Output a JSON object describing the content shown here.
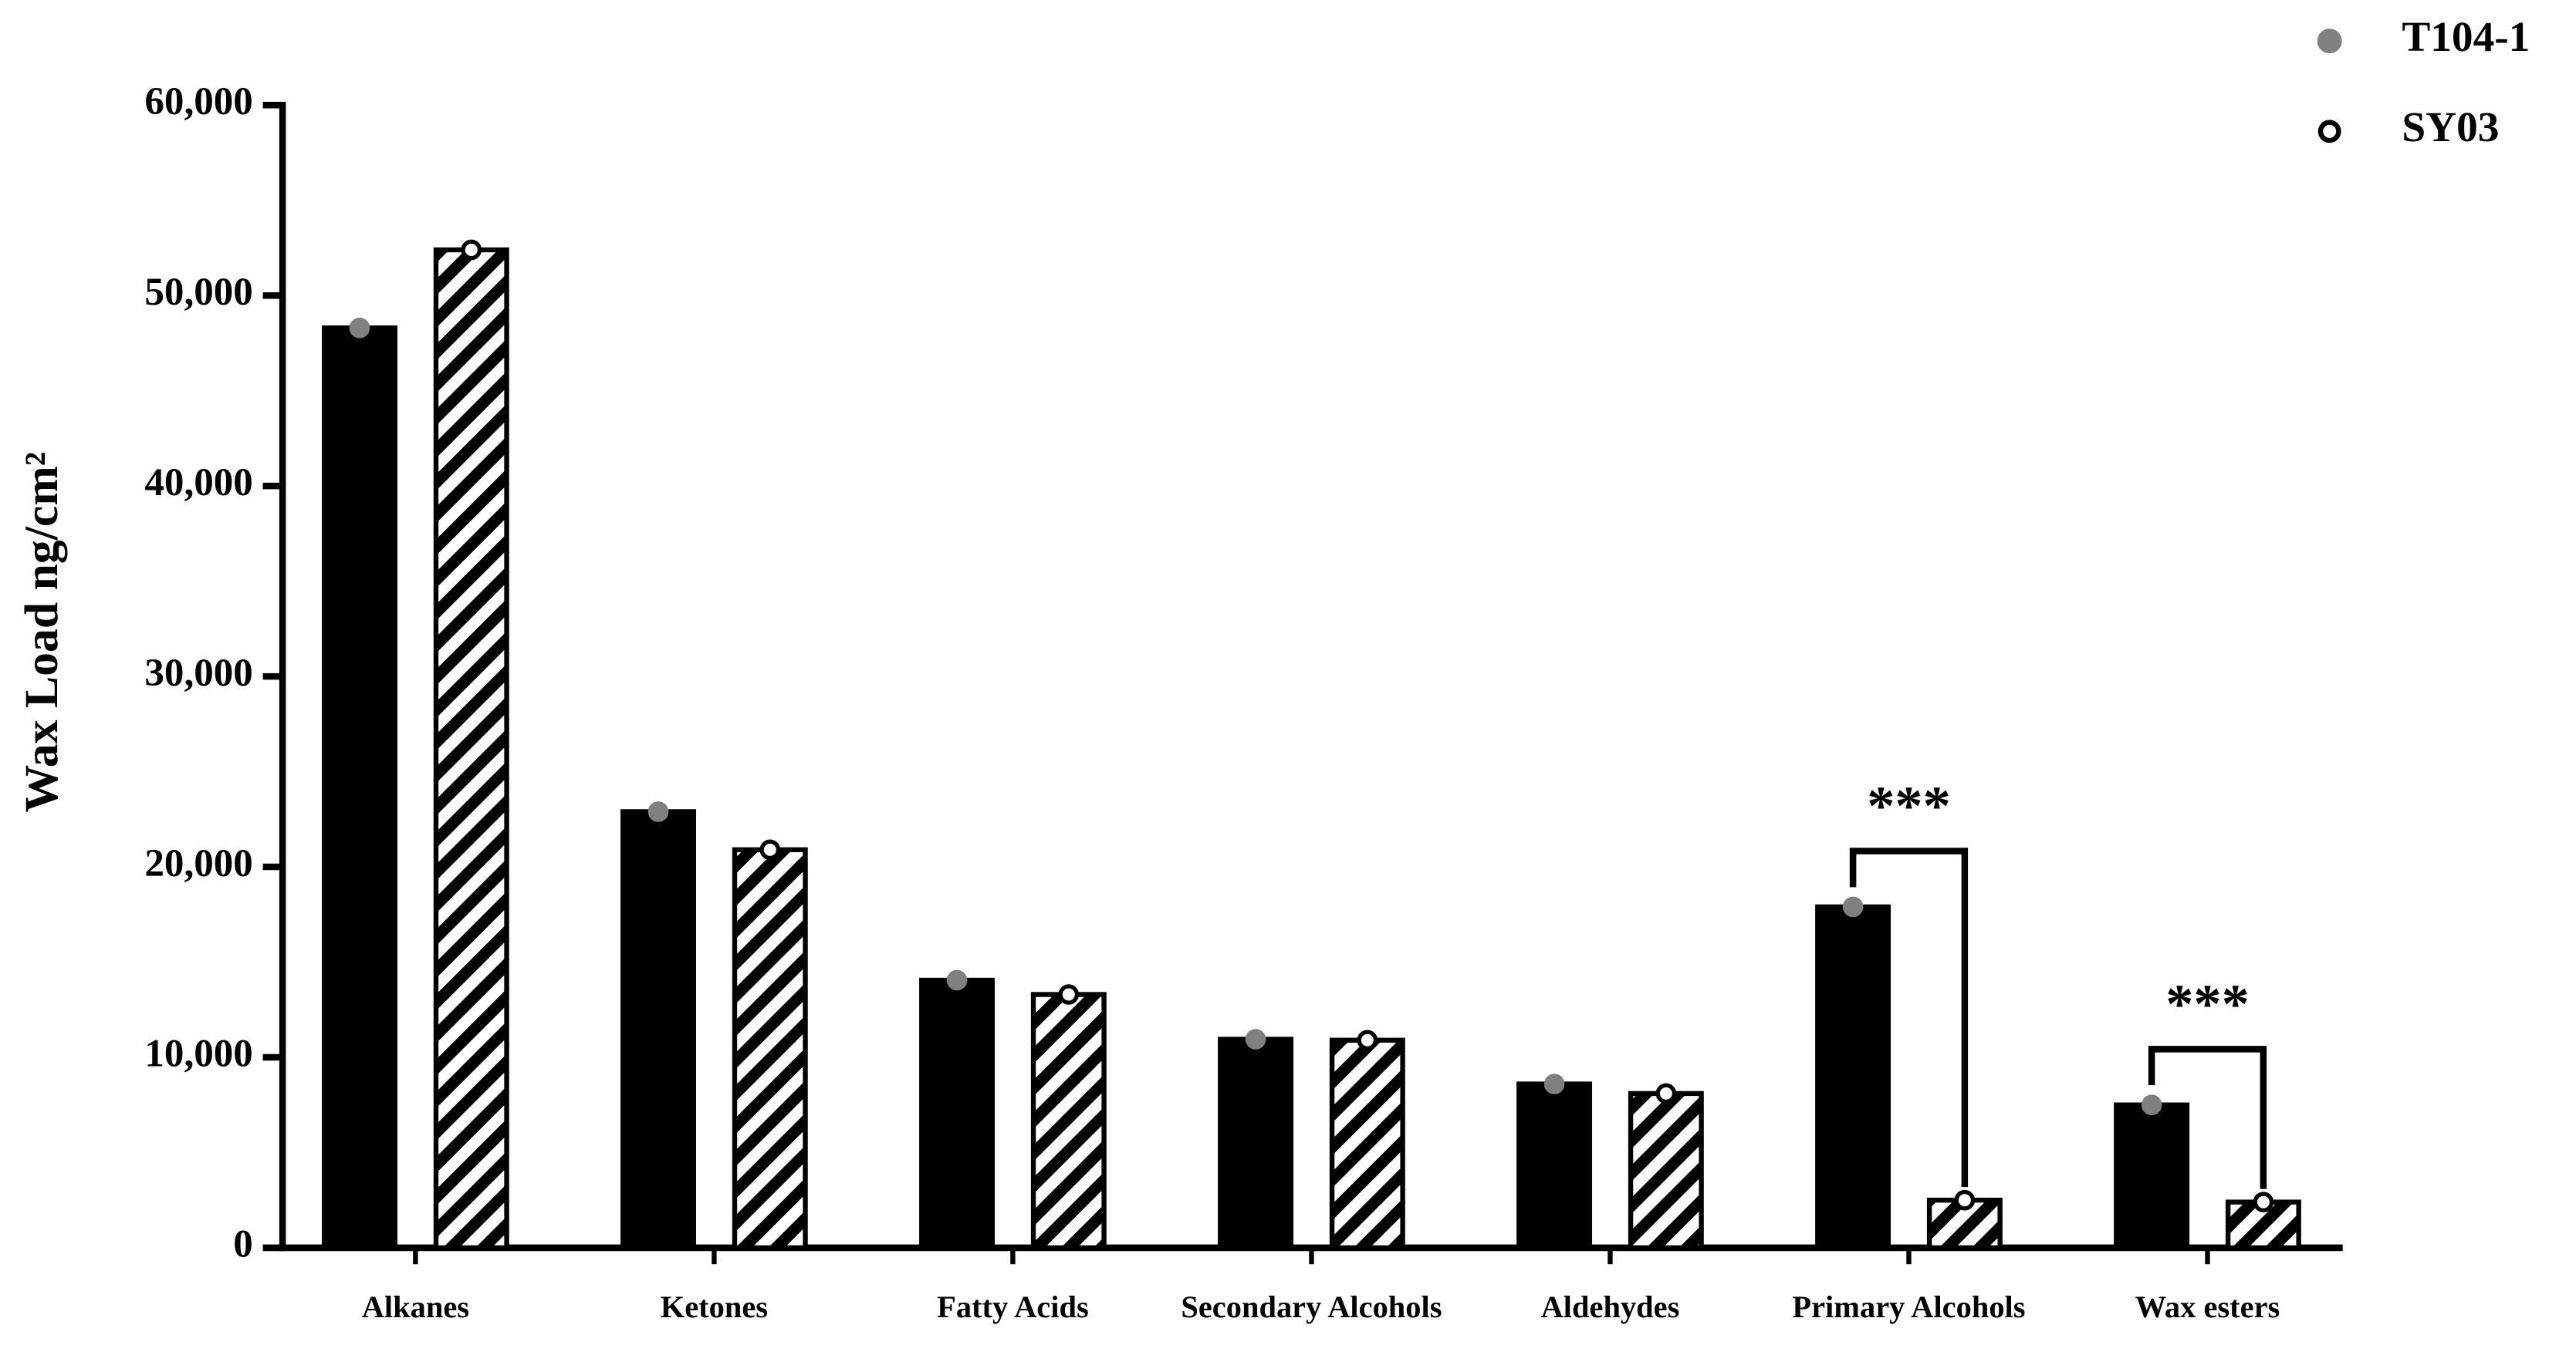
{
  "chart_data": {
    "type": "bar",
    "y_label": "Wax Load  ng/cm²",
    "categories": [
      "Alkanes",
      "Ketones",
      "Fatty Acids",
      "Secondary Alcohols",
      "Aldehydes",
      "Primary Alcohols",
      "Wax esters"
    ],
    "series": [
      {
        "name": "T104-1",
        "color": "#000000",
        "marker_color": "#808080",
        "values": [
          48300,
          22900,
          14050,
          10950,
          8600,
          17900,
          7500
        ]
      },
      {
        "name": "SY03",
        "color": "#000000",
        "pattern": "hatch",
        "marker_color": "#ffffff",
        "values": [
          52400,
          20900,
          13300,
          10900,
          8100,
          2500,
          2400
        ]
      }
    ],
    "annotations": [
      "***",
      "***"
    ],
    "ylim": [
      0,
      60000
    ],
    "yticks": [
      0,
      {
        "value": 10000,
        "label": "10,000"
      },
      {
        "value": 20000,
        "label": "20,000"
      },
      {
        "value": 30000,
        "label": "30,000"
      },
      {
        "value": 40000,
        "label": "40,000"
      },
      {
        "value": 50000,
        "label": "50,000"
      },
      {
        "value": 60000,
        "label": "60,000"
      }
    ],
    "grid": false,
    "legend": "top-right"
  }
}
